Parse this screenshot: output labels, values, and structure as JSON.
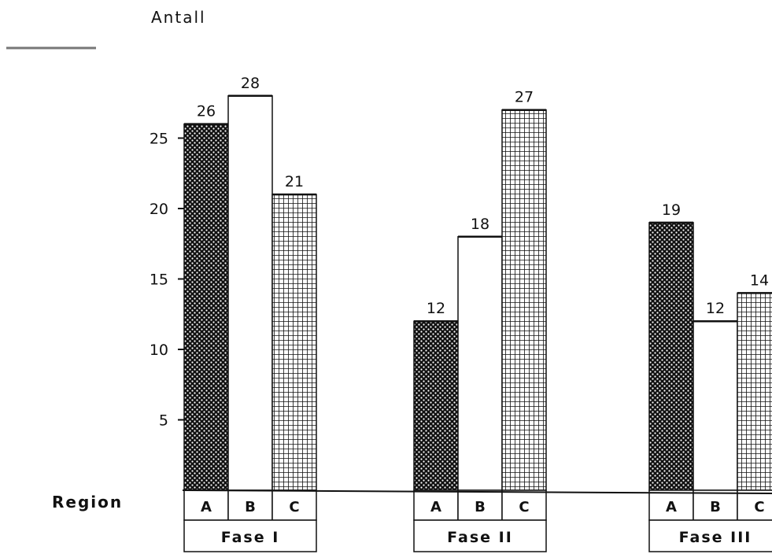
{
  "chart_data": {
    "type": "bar",
    "ylabel": "Antall",
    "xlabel": "Region",
    "yticks": [
      5,
      10,
      15,
      20,
      25
    ],
    "ylim": [
      0,
      30
    ],
    "groups": [
      {
        "label": "Fase I",
        "categories": [
          "A",
          "B",
          "C"
        ],
        "values": [
          26,
          28,
          21
        ],
        "value_labels": [
          "26",
          "28",
          "21"
        ]
      },
      {
        "label": "Fase II",
        "categories": [
          "A",
          "B",
          "C"
        ],
        "values": [
          12,
          18,
          27
        ],
        "value_labels": [
          "12",
          "18",
          "27"
        ]
      },
      {
        "label": "Fase III",
        "categories": [
          "A",
          "B",
          "C"
        ],
        "values": [
          19,
          12,
          14
        ],
        "value_labels": [
          "19",
          "12",
          "14"
        ]
      }
    ],
    "fills": {
      "A": "dotted-dark",
      "B": "white",
      "C": "grid"
    },
    "colors": {
      "ink": "#111111",
      "paper": "#ffffff"
    }
  }
}
